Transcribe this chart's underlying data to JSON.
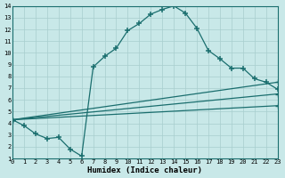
{
  "xlabel": "Humidex (Indice chaleur)",
  "background_color": "#c8e8e8",
  "line_color": "#1a6e6e",
  "grid_color": "#a8cece",
  "xlim": [
    0,
    23
  ],
  "ylim": [
    1,
    14
  ],
  "xticks": [
    0,
    1,
    2,
    3,
    4,
    5,
    6,
    7,
    8,
    9,
    10,
    11,
    12,
    13,
    14,
    15,
    16,
    17,
    18,
    19,
    20,
    21,
    22,
    23
  ],
  "yticks": [
    1,
    2,
    3,
    4,
    5,
    6,
    7,
    8,
    9,
    10,
    11,
    12,
    13,
    14
  ],
  "curve_x": [
    0,
    1,
    2,
    3,
    4,
    5,
    6,
    7,
    8,
    9,
    10,
    11,
    12,
    13,
    14,
    15,
    16,
    17,
    18,
    19,
    20,
    21,
    22,
    23
  ],
  "curve_y": [
    4.3,
    3.8,
    3.1,
    2.7,
    2.8,
    1.8,
    1.2,
    8.8,
    9.7,
    10.4,
    11.9,
    12.5,
    13.3,
    13.7,
    14.0,
    13.4,
    12.1,
    10.2,
    9.5,
    8.7,
    8.7,
    7.8,
    7.5,
    6.9
  ],
  "line1_x": [
    0,
    23
  ],
  "line1_y": [
    4.3,
    7.5
  ],
  "line2_x": [
    0,
    23
  ],
  "line2_y": [
    4.3,
    6.5
  ],
  "line3_x": [
    0,
    23
  ],
  "line3_y": [
    4.3,
    5.5
  ]
}
